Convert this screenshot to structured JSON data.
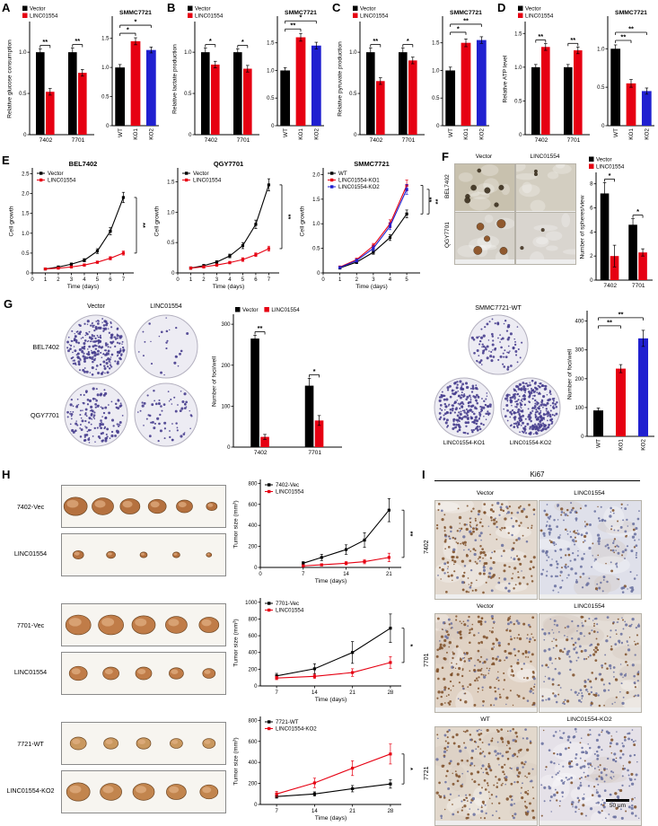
{
  "letters": {
    "A": "A",
    "B": "B",
    "C": "C",
    "D": "D",
    "E": "E",
    "F": "F",
    "G": "G",
    "H": "H",
    "I": "I"
  },
  "accent_colors": {
    "vector_black": "#000000",
    "linc_red": "#e60012",
    "ko2_blue": "#2020d0"
  },
  "panelF": {
    "cols": [
      "Vector",
      "LINC01554"
    ],
    "rows": [
      "BEL7402",
      "QGY7701"
    ]
  },
  "panelG": {
    "cols": [
      "Vector",
      "LINC01554"
    ],
    "rows": [
      "BEL7402",
      "QGY7701"
    ],
    "wt": "SMMC7721-WT",
    "ko1": "LINC01554-KO1",
    "ko2": "LINC01554-KO2"
  },
  "panelH": {
    "rows": [
      {
        "top": "7402-Vec",
        "bottom": "LINC01554"
      },
      {
        "top": "7701-Vec",
        "bottom": "LINC01554"
      },
      {
        "top": "7721-WT",
        "bottom": "LINC01554-KO2"
      }
    ]
  },
  "panelI": {
    "title": "Ki67",
    "groups": [
      {
        "row": "7402",
        "cols": [
          "Vector",
          "LINC01554"
        ]
      },
      {
        "row": "7701",
        "cols": [
          "Vector",
          "LINC01554"
        ]
      },
      {
        "row": "7721",
        "cols": [
          "WT",
          "LINC01554-KO2"
        ]
      }
    ],
    "scale_label": "50 μm"
  },
  "chart_data": [
    {
      "id": "A_left",
      "type": "grouped_bar",
      "ylabel": "Relative glucose consumption",
      "categories": [
        "7402",
        "7701"
      ],
      "series": [
        {
          "name": "Vector",
          "color": "#000000",
          "values": [
            1.0,
            1.0
          ],
          "errors": [
            0.04,
            0.05
          ]
        },
        {
          "name": "LINC01554",
          "color": "#e60012",
          "values": [
            0.52,
            0.75
          ],
          "errors": [
            0.04,
            0.04
          ]
        }
      ],
      "ylim": [
        0,
        1.35
      ],
      "yticks": [
        "0",
        "0.5",
        "1.0"
      ],
      "legend": [
        {
          "label": "Vector",
          "color": "#000000"
        },
        {
          "label": "LINC01554",
          "color": "#e60012"
        }
      ],
      "sig": [
        {
          "group": 0,
          "label": "**"
        },
        {
          "group": 1,
          "label": "**"
        }
      ]
    },
    {
      "id": "A_right",
      "type": "bar",
      "title": "SMMC7721",
      "rotx": true,
      "categories": [
        "WT",
        "KO1",
        "KO2"
      ],
      "values": [
        1.0,
        1.45,
        1.3
      ],
      "errors": [
        0.05,
        0.06,
        0.05
      ],
      "colors": [
        "#000000",
        "#e60012",
        "#2020d0"
      ],
      "ylim": [
        0,
        1.85
      ],
      "yticks": [
        "0",
        "0.5",
        "1.0",
        "1.5"
      ],
      "sig": [
        {
          "from": 0,
          "to": 1,
          "label": "*"
        },
        {
          "from": 0,
          "to": 2,
          "label": "*"
        }
      ]
    },
    {
      "id": "B_left",
      "type": "grouped_bar",
      "ylabel": "Relative lactate production",
      "categories": [
        "7402",
        "7701"
      ],
      "series": [
        {
          "name": "Vector",
          "color": "#000000",
          "values": [
            1.0,
            1.0
          ],
          "errors": [
            0.05,
            0.04
          ]
        },
        {
          "name": "LINC01554",
          "color": "#e60012",
          "values": [
            0.85,
            0.8
          ],
          "errors": [
            0.04,
            0.04
          ]
        }
      ],
      "ylim": [
        0,
        1.35
      ],
      "yticks": [
        "0",
        "0.5",
        "1.0"
      ],
      "legend": [
        {
          "label": "Vector",
          "color": "#000000"
        },
        {
          "label": "LINC01554",
          "color": "#e60012"
        }
      ],
      "sig": [
        {
          "group": 0,
          "label": "*"
        },
        {
          "group": 1,
          "label": "*"
        }
      ]
    },
    {
      "id": "B_right",
      "type": "bar",
      "title": "SMMC7721",
      "rotx": true,
      "categories": [
        "WT",
        "KO1",
        "KO2"
      ],
      "values": [
        1.0,
        1.6,
        1.45
      ],
      "errors": [
        0.05,
        0.07,
        0.06
      ],
      "colors": [
        "#000000",
        "#e60012",
        "#2020d0"
      ],
      "ylim": [
        0,
        1.95
      ],
      "yticks": [
        "0",
        "0.5",
        "1.0",
        "1.5"
      ],
      "sig": [
        {
          "from": 0,
          "to": 1,
          "label": "**"
        },
        {
          "from": 0,
          "to": 2,
          "label": "*"
        }
      ]
    },
    {
      "id": "C_left",
      "type": "grouped_bar",
      "ylabel": "Relative pyruvate production",
      "categories": [
        "7402",
        "7701"
      ],
      "series": [
        {
          "name": "Vector",
          "color": "#000000",
          "values": [
            1.0,
            1.0
          ],
          "errors": [
            0.05,
            0.05
          ]
        },
        {
          "name": "LINC01554",
          "color": "#e60012",
          "values": [
            0.65,
            0.9
          ],
          "errors": [
            0.04,
            0.04
          ]
        }
      ],
      "ylim": [
        0,
        1.35
      ],
      "yticks": [
        "0",
        "0.5",
        "1.0"
      ],
      "legend": [
        {
          "label": "Vector",
          "color": "#000000"
        },
        {
          "label": "LINC01554",
          "color": "#e60012"
        }
      ],
      "sig": [
        {
          "group": 0,
          "label": "**"
        },
        {
          "group": 1,
          "label": "*"
        }
      ]
    },
    {
      "id": "C_right",
      "type": "bar",
      "title": "SMMC7721",
      "rotx": true,
      "categories": [
        "WT",
        "KO1",
        "KO2"
      ],
      "values": [
        1.0,
        1.5,
        1.55
      ],
      "errors": [
        0.06,
        0.07,
        0.06
      ],
      "colors": [
        "#000000",
        "#e60012",
        "#2020d0"
      ],
      "ylim": [
        0,
        1.95
      ],
      "yticks": [
        "0",
        "0.5",
        "1.0",
        "1.5"
      ],
      "sig": [
        {
          "from": 0,
          "to": 1,
          "label": "*"
        },
        {
          "from": 0,
          "to": 2,
          "label": "**"
        }
      ]
    },
    {
      "id": "D_left",
      "type": "grouped_bar",
      "ylabel": "Relative ATP level",
      "categories": [
        "7402",
        "7701"
      ],
      "series": [
        {
          "name": "Vector",
          "color": "#000000",
          "values": [
            1.0,
            1.0
          ],
          "errors": [
            0.04,
            0.04
          ]
        },
        {
          "name": "LINC01554",
          "color": "#e60012",
          "values": [
            1.3,
            1.25
          ],
          "errors": [
            0.05,
            0.05
          ]
        }
      ],
      "ylim": [
        0,
        1.65
      ],
      "yticks": [
        "0",
        "0.5",
        "1.0",
        "1.5"
      ],
      "legend": [
        {
          "label": "Vector",
          "color": "#000000"
        },
        {
          "label": "LINC01554",
          "color": "#e60012"
        }
      ],
      "sig": [
        {
          "group": 0,
          "label": "**"
        },
        {
          "group": 1,
          "label": "**"
        }
      ]
    },
    {
      "id": "D_right",
      "type": "bar",
      "title": "SMMC7721",
      "rotx": true,
      "categories": [
        "WT",
        "KO1",
        "KO2"
      ],
      "values": [
        1.0,
        0.55,
        0.45
      ],
      "errors": [
        0.05,
        0.05,
        0.04
      ],
      "colors": [
        "#000000",
        "#e60012",
        "#2020d0"
      ],
      "ylim": [
        0,
        1.4
      ],
      "yticks": [
        "0",
        "0.5",
        "1.0"
      ],
      "sig": [
        {
          "from": 0,
          "to": 1,
          "label": "**"
        },
        {
          "from": 0,
          "to": 2,
          "label": "**"
        }
      ]
    },
    {
      "id": "E_bel",
      "type": "line",
      "title": "BEL7402",
      "xlabel": "Time (days)",
      "ylabel": "Cell growth",
      "x": [
        1,
        2,
        3,
        4,
        5,
        6,
        7
      ],
      "xlim": [
        0,
        7.8
      ],
      "xticks": [
        "0",
        "1",
        "2",
        "3",
        "4",
        "5",
        "6",
        "7"
      ],
      "ylim": [
        0,
        2.6
      ],
      "yticks": [
        "0",
        "0.5",
        "1.0",
        "1.5",
        "2.0",
        "2.5"
      ],
      "ml": 28,
      "series": [
        {
          "name": "Vector",
          "color": "#000000",
          "values": [
            0.1,
            0.15,
            0.22,
            0.32,
            0.55,
            1.05,
            1.9
          ],
          "errors": [
            0.02,
            0.02,
            0.03,
            0.04,
            0.06,
            0.09,
            0.13
          ]
        },
        {
          "name": "LINC01554",
          "color": "#e60012",
          "values": [
            0.1,
            0.12,
            0.15,
            0.2,
            0.27,
            0.37,
            0.5
          ],
          "errors": [
            0.02,
            0.02,
            0.02,
            0.03,
            0.03,
            0.04,
            0.05
          ]
        }
      ],
      "sig": [
        {
          "from": 0,
          "to": 1,
          "label": "**"
        }
      ]
    },
    {
      "id": "E_qgy",
      "type": "line",
      "title": "QGY7701",
      "xlabel": "Time (days)",
      "ylabel": "Cell growth",
      "x": [
        1,
        2,
        3,
        4,
        5,
        6,
        7
      ],
      "xlim": [
        0,
        7.8
      ],
      "xticks": [
        "0",
        "1",
        "2",
        "3",
        "4",
        "5",
        "6",
        "7"
      ],
      "ylim": [
        0,
        1.7
      ],
      "yticks": [
        "0",
        "0.5",
        "1.0",
        "1.5"
      ],
      "ml": 28,
      "series": [
        {
          "name": "Vector",
          "color": "#000000",
          "values": [
            0.08,
            0.12,
            0.18,
            0.28,
            0.45,
            0.8,
            1.45
          ],
          "errors": [
            0.02,
            0.02,
            0.02,
            0.03,
            0.05,
            0.07,
            0.1
          ]
        },
        {
          "name": "LINC01554",
          "color": "#e60012",
          "values": [
            0.08,
            0.1,
            0.13,
            0.17,
            0.22,
            0.3,
            0.4
          ],
          "errors": [
            0.02,
            0.02,
            0.02,
            0.02,
            0.03,
            0.03,
            0.04
          ]
        }
      ],
      "sig": [
        {
          "from": 0,
          "to": 1,
          "label": "**"
        }
      ]
    },
    {
      "id": "E_smmc",
      "type": "line",
      "title": "SMMC7721",
      "xlabel": "Time (days)",
      "ylabel": "Cell growth",
      "x": [
        1,
        2,
        3,
        4,
        5
      ],
      "xlim": [
        0,
        5.8
      ],
      "xticks": [
        "0",
        "1",
        "2",
        "3",
        "4",
        "5"
      ],
      "ylim": [
        0,
        2.1
      ],
      "yticks": [
        "0",
        "0.5",
        "1.0",
        "1.5",
        "2.0"
      ],
      "ml": 28,
      "series": [
        {
          "name": "WT",
          "color": "#000000",
          "values": [
            0.1,
            0.22,
            0.42,
            0.72,
            1.2
          ],
          "errors": [
            0.02,
            0.03,
            0.04,
            0.06,
            0.08
          ]
        },
        {
          "name": "LINC01554-KO1",
          "color": "#e60012",
          "values": [
            0.12,
            0.27,
            0.55,
            1.0,
            1.78
          ],
          "errors": [
            0.02,
            0.03,
            0.05,
            0.08,
            0.11
          ]
        },
        {
          "name": "LINC01554-KO2",
          "color": "#2020d0",
          "values": [
            0.11,
            0.25,
            0.5,
            0.95,
            1.7
          ],
          "errors": [
            0.02,
            0.03,
            0.05,
            0.07,
            0.1
          ]
        }
      ],
      "sig": [
        {
          "from": 0,
          "to": 1,
          "label": "**"
        },
        {
          "from": 0,
          "to": 2,
          "label": "**"
        }
      ]
    },
    {
      "id": "F_bar",
      "type": "grouped_bar",
      "ylabel": "Number of spheres/view",
      "categories": [
        "7402",
        "7701"
      ],
      "ml": 20,
      "series": [
        {
          "name": "Vector",
          "color": "#000000",
          "values": [
            7.2,
            4.6
          ],
          "errors": [
            0.9,
            0.5
          ]
        },
        {
          "name": "LINC01554",
          "color": "#e60012",
          "values": [
            2.0,
            2.3
          ],
          "errors": [
            0.9,
            0.3
          ]
        }
      ],
      "ylim": [
        0,
        8.8
      ],
      "yticks": [
        "0",
        "2",
        "4",
        "6",
        "8"
      ],
      "legend": [
        {
          "label": "Vector",
          "color": "#000000"
        },
        {
          "label": "LINC01554",
          "color": "#e60012"
        }
      ],
      "sig": [
        {
          "group": 0,
          "label": "*"
        },
        {
          "group": 1,
          "label": "*"
        }
      ]
    },
    {
      "id": "G_bar_left",
      "type": "grouped_bar",
      "ylabel": "Number of foci/well",
      "categories": [
        "7402",
        "7701"
      ],
      "ml": 26,
      "legend_h": true,
      "series": [
        {
          "name": "Vector",
          "color": "#000000",
          "values": [
            265,
            150
          ],
          "errors": [
            8,
            18
          ]
        },
        {
          "name": "LINC01554",
          "color": "#e60012",
          "values": [
            25,
            65
          ],
          "errors": [
            6,
            12
          ]
        }
      ],
      "ylim": [
        0,
        320
      ],
      "yticks": [
        "0",
        "100",
        "200",
        "300"
      ],
      "legend": [
        {
          "label": "Vector",
          "color": "#000000"
        },
        {
          "label": "LINC01554",
          "color": "#e60012"
        }
      ],
      "sig": [
        {
          "group": 0,
          "label": "**"
        },
        {
          "group": 1,
          "label": "*"
        }
      ]
    },
    {
      "id": "G_bar_right",
      "type": "bar",
      "ylabel": "Number of foci/well",
      "rotx": true,
      "categories": [
        "WT",
        "KO1",
        "KO2"
      ],
      "ml": 24,
      "values": [
        90,
        235,
        340
      ],
      "errors": [
        8,
        14,
        28
      ],
      "colors": [
        "#000000",
        "#e60012",
        "#2020d0"
      ],
      "ylim": [
        0,
        430
      ],
      "yticks": [
        "0",
        "100",
        "200",
        "300",
        "400"
      ],
      "sig": [
        {
          "from": 0,
          "to": 1,
          "label": "**"
        },
        {
          "from": 0,
          "to": 2,
          "label": "**"
        }
      ]
    },
    {
      "id": "H1",
      "type": "line",
      "xlabel": "Time (days)",
      "ylabel": "Tumor size (mm³)",
      "ml": 32,
      "x": [
        7,
        10,
        14,
        17,
        21
      ],
      "xlim": [
        0,
        23
      ],
      "xticks": [
        "0",
        "7",
        "14",
        "21"
      ],
      "ylim": [
        0,
        820
      ],
      "yticks": [
        "0",
        "200",
        "400",
        "600",
        "800"
      ],
      "series": [
        {
          "name": "7402-Vec",
          "color": "#000000",
          "values": [
            40,
            95,
            170,
            260,
            545
          ],
          "errors": [
            15,
            30,
            45,
            70,
            110
          ]
        },
        {
          "name": "LINC01554",
          "color": "#e60012",
          "values": [
            15,
            25,
            40,
            55,
            95
          ],
          "errors": [
            8,
            10,
            15,
            20,
            40
          ]
        }
      ],
      "sig": [
        {
          "from": 0,
          "to": 1,
          "label": "**"
        }
      ]
    },
    {
      "id": "H2",
      "type": "line",
      "xlabel": "Time (days)",
      "ylabel": "Tumor size (mm³)",
      "ml": 32,
      "x": [
        7,
        14,
        21,
        28
      ],
      "xlim": [
        4,
        30
      ],
      "xticks": [
        "7",
        "14",
        "21",
        "28"
      ],
      "ylim": [
        0,
        1030
      ],
      "yticks": [
        "0",
        "200",
        "400",
        "600",
        "800",
        "1000"
      ],
      "series": [
        {
          "name": "7701-Vec",
          "color": "#000000",
          "values": [
            120,
            205,
            400,
            690
          ],
          "errors": [
            30,
            60,
            130,
            170
          ]
        },
        {
          "name": "LINC01554",
          "color": "#e60012",
          "values": [
            95,
            115,
            160,
            280
          ],
          "errors": [
            20,
            25,
            45,
            70
          ]
        }
      ],
      "sig": [
        {
          "from": 0,
          "to": 1,
          "label": "*"
        }
      ]
    },
    {
      "id": "H3",
      "type": "line",
      "xlabel": "Time (days)",
      "ylabel": "Tumor size (mm³)",
      "ml": 32,
      "x": [
        7,
        14,
        21,
        28
      ],
      "xlim": [
        4,
        30
      ],
      "xticks": [
        "7",
        "14",
        "21",
        "28"
      ],
      "ylim": [
        0,
        820
      ],
      "yticks": [
        "0",
        "200",
        "400",
        "600",
        "800"
      ],
      "series": [
        {
          "name": "7721-WT",
          "color": "#000000",
          "values": [
            75,
            100,
            150,
            195
          ],
          "errors": [
            15,
            20,
            30,
            40
          ]
        },
        {
          "name": "LINC01554-KO2",
          "color": "#e60012",
          "values": [
            100,
            205,
            345,
            480
          ],
          "errors": [
            25,
            45,
            70,
            95
          ]
        }
      ],
      "sig": [
        {
          "from": 0,
          "to": 1,
          "label": "*"
        }
      ]
    }
  ]
}
